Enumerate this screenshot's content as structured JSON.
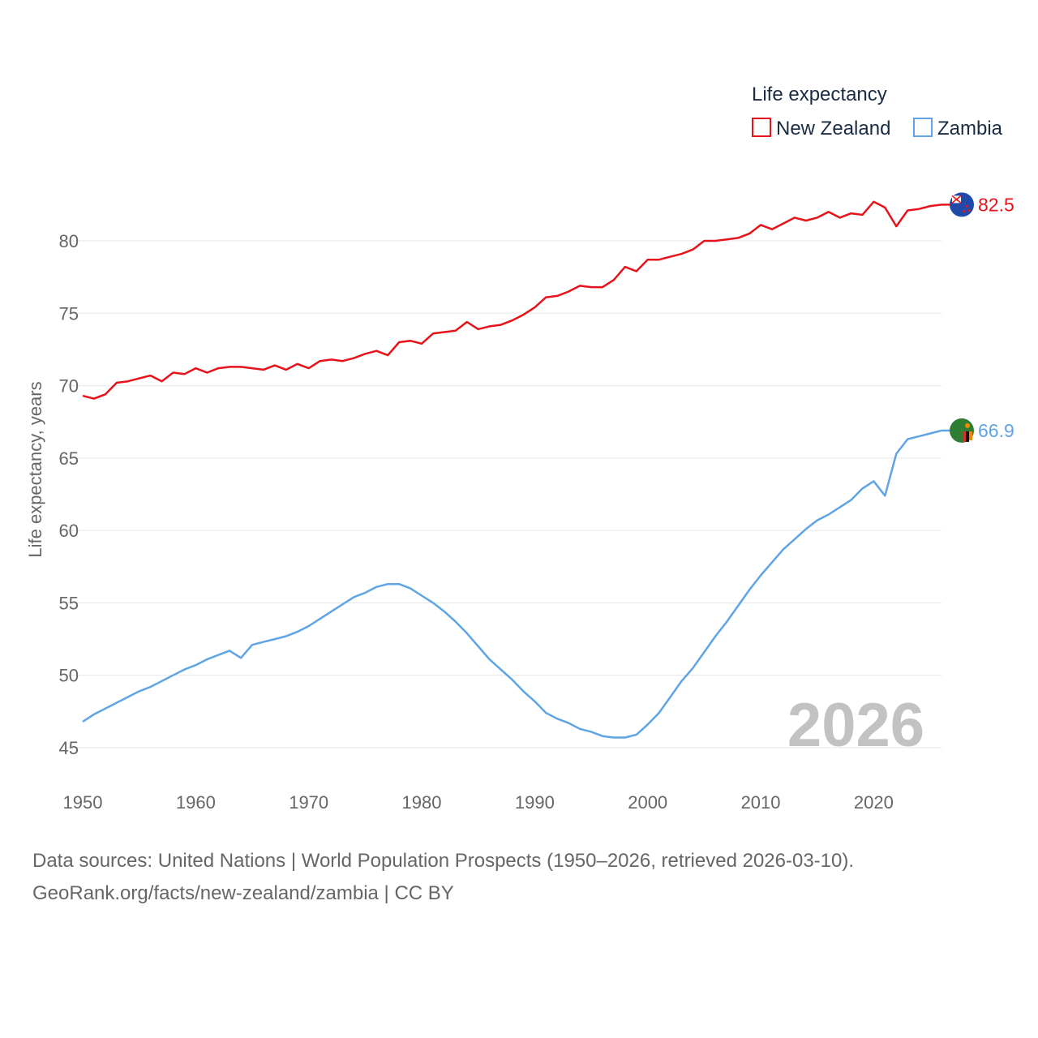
{
  "chart_data": {
    "type": "line",
    "title": "",
    "xlabel": "",
    "ylabel": "Life expectancy, years",
    "xlim": [
      1950,
      2026
    ],
    "ylim": [
      45,
      83
    ],
    "xticks": [
      1950,
      1960,
      1970,
      1980,
      1990,
      2000,
      2010,
      2020
    ],
    "yticks": [
      45,
      50,
      55,
      60,
      65,
      70,
      75,
      80
    ],
    "grid": true,
    "legend_title": "Life expectancy",
    "legend_position": "top-right",
    "year_watermark": "2026",
    "x": [
      1950,
      1951,
      1952,
      1953,
      1954,
      1955,
      1956,
      1957,
      1958,
      1959,
      1960,
      1961,
      1962,
      1963,
      1964,
      1965,
      1966,
      1967,
      1968,
      1969,
      1970,
      1971,
      1972,
      1973,
      1974,
      1975,
      1976,
      1977,
      1978,
      1979,
      1980,
      1981,
      1982,
      1983,
      1984,
      1985,
      1986,
      1987,
      1988,
      1989,
      1990,
      1991,
      1992,
      1993,
      1994,
      1995,
      1996,
      1997,
      1998,
      1999,
      2000,
      2001,
      2002,
      2003,
      2004,
      2005,
      2006,
      2007,
      2008,
      2009,
      2010,
      2011,
      2012,
      2013,
      2014,
      2015,
      2016,
      2017,
      2018,
      2019,
      2020,
      2021,
      2022,
      2023,
      2024,
      2025,
      2026
    ],
    "series": [
      {
        "name": "New Zealand",
        "color": "#e8131a",
        "end_label": "82.5",
        "flag": "new-zealand-flag-icon",
        "values": [
          69.3,
          69.1,
          69.4,
          70.2,
          70.3,
          70.5,
          70.7,
          70.3,
          70.9,
          70.8,
          71.2,
          70.9,
          71.2,
          71.3,
          71.3,
          71.2,
          71.1,
          71.4,
          71.1,
          71.5,
          71.2,
          71.7,
          71.8,
          71.7,
          71.9,
          72.2,
          72.4,
          72.1,
          73.0,
          73.1,
          72.9,
          73.6,
          73.7,
          73.8,
          74.4,
          73.9,
          74.1,
          74.2,
          74.5,
          74.9,
          75.4,
          76.1,
          76.2,
          76.5,
          76.9,
          76.8,
          76.8,
          77.3,
          78.2,
          77.9,
          78.7,
          78.7,
          78.9,
          79.1,
          79.4,
          80.0,
          80.0,
          80.1,
          80.2,
          80.5,
          81.1,
          80.8,
          81.2,
          81.6,
          81.4,
          81.6,
          82.0,
          81.6,
          81.9,
          81.8,
          82.7,
          82.3,
          81.0,
          82.1,
          82.2,
          82.4,
          82.5
        ]
      },
      {
        "name": "Zambia",
        "color": "#5fa4e4",
        "end_label": "66.9",
        "flag": "zambia-flag-icon",
        "values": [
          46.8,
          47.3,
          47.7,
          48.1,
          48.5,
          48.9,
          49.2,
          49.6,
          50.0,
          50.4,
          50.7,
          51.1,
          51.4,
          51.7,
          51.2,
          52.1,
          52.3,
          52.5,
          52.7,
          53.0,
          53.4,
          53.9,
          54.4,
          54.9,
          55.4,
          55.7,
          56.1,
          56.3,
          56.3,
          56.0,
          55.5,
          55.0,
          54.4,
          53.7,
          52.9,
          52.0,
          51.1,
          50.4,
          49.7,
          48.9,
          48.2,
          47.4,
          47.0,
          46.7,
          46.3,
          46.1,
          45.8,
          45.7,
          45.7,
          45.9,
          46.6,
          47.4,
          48.5,
          49.6,
          50.5,
          51.6,
          52.7,
          53.7,
          54.8,
          55.9,
          56.9,
          57.8,
          58.7,
          59.4,
          60.1,
          60.7,
          61.1,
          61.6,
          62.1,
          62.9,
          63.4,
          62.4,
          65.3,
          66.3,
          66.5,
          66.7,
          66.9
        ]
      }
    ]
  },
  "source_line1": "Data sources: United Nations | World Population Prospects (1950–2026, retrieved 2026-03-10).",
  "source_line2": "GeoRank.org/facts/new-zealand/zambia | CC BY"
}
